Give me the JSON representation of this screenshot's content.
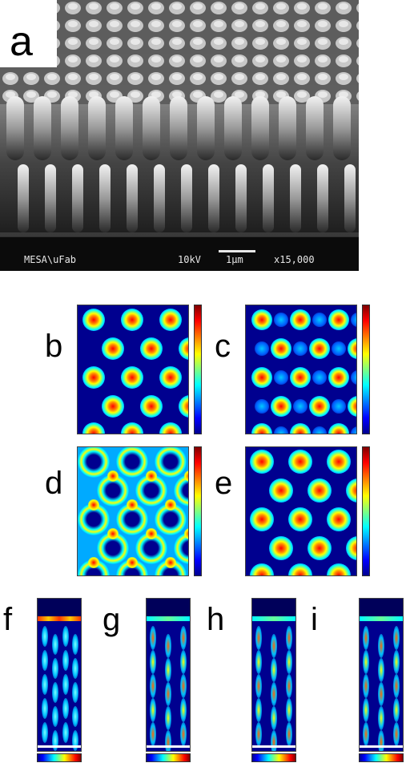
{
  "panels": {
    "a": "a",
    "b": "b",
    "c": "c",
    "d": "d",
    "e": "e",
    "f": "f",
    "g": "g",
    "h": "h",
    "i": "i"
  },
  "sem": {
    "left_caption": "MESA\\uFab",
    "voltage": "10kV",
    "scale": "1μm",
    "magnification": "x15,000"
  },
  "colors": {
    "colormap": [
      "#00008f",
      "#0000ff",
      "#00ffff",
      "#ffff00",
      "#ff0000",
      "#800000"
    ],
    "background": "#ffffff"
  }
}
